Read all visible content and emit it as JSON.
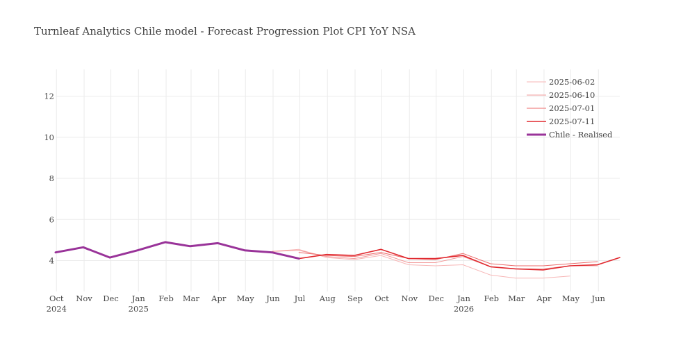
{
  "chart_data": {
    "type": "line",
    "title": "Turnleaf Analytics Chile model - Forecast Progression Plot CPI YoY NSA",
    "xlabel": "",
    "ylabel": "",
    "x_range": [
      "2024-09-30",
      "2026-06-25"
    ],
    "ylim": [
      2.5,
      13.3
    ],
    "y_ticks": [
      4,
      6,
      8,
      10,
      12
    ],
    "grid": true,
    "legend_position": "top-right",
    "x_ticks": [
      {
        "date": "2024-10-01",
        "label": "Oct",
        "sub": "2024"
      },
      {
        "date": "2024-11-01",
        "label": "Nov",
        "sub": ""
      },
      {
        "date": "2024-12-01",
        "label": "Dec",
        "sub": ""
      },
      {
        "date": "2025-01-01",
        "label": "Jan",
        "sub": "2025"
      },
      {
        "date": "2025-02-01",
        "label": "Feb",
        "sub": ""
      },
      {
        "date": "2025-03-01",
        "label": "Mar",
        "sub": ""
      },
      {
        "date": "2025-04-01",
        "label": "Apr",
        "sub": ""
      },
      {
        "date": "2025-05-01",
        "label": "May",
        "sub": ""
      },
      {
        "date": "2025-06-01",
        "label": "Jun",
        "sub": ""
      },
      {
        "date": "2025-07-01",
        "label": "Jul",
        "sub": ""
      },
      {
        "date": "2025-08-01",
        "label": "Aug",
        "sub": ""
      },
      {
        "date": "2025-09-01",
        "label": "Sep",
        "sub": ""
      },
      {
        "date": "2025-10-01",
        "label": "Oct",
        "sub": ""
      },
      {
        "date": "2025-11-01",
        "label": "Nov",
        "sub": ""
      },
      {
        "date": "2025-12-01",
        "label": "Dec",
        "sub": ""
      },
      {
        "date": "2026-01-01",
        "label": "Jan",
        "sub": "2026"
      },
      {
        "date": "2026-02-01",
        "label": "Feb",
        "sub": ""
      },
      {
        "date": "2026-03-01",
        "label": "Mar",
        "sub": ""
      },
      {
        "date": "2026-04-01",
        "label": "Apr",
        "sub": ""
      },
      {
        "date": "2026-05-01",
        "label": "May",
        "sub": ""
      },
      {
        "date": "2026-06-01",
        "label": "Jun",
        "sub": ""
      }
    ],
    "series": [
      {
        "name": "2025-06-02",
        "color": "#f7b6b6",
        "width": 1,
        "points": [
          [
            "2025-05-31",
            4.45
          ],
          [
            "2025-06-30",
            4.55
          ],
          [
            "2025-07-31",
            4.15
          ],
          [
            "2025-08-31",
            4.05
          ],
          [
            "2025-09-30",
            4.25
          ],
          [
            "2025-10-31",
            3.8
          ],
          [
            "2025-11-30",
            3.75
          ],
          [
            "2025-12-31",
            3.8
          ],
          [
            "2026-01-31",
            3.3
          ],
          [
            "2026-02-28",
            3.15
          ],
          [
            "2026-03-31",
            3.15
          ],
          [
            "2026-04-30",
            3.25
          ]
        ]
      },
      {
        "name": "2025-06-10",
        "color": "#f29a9a",
        "width": 1,
        "points": [
          [
            "2025-05-31",
            4.45
          ],
          [
            "2025-06-30",
            4.5
          ],
          [
            "2025-07-31",
            4.2
          ],
          [
            "2025-08-31",
            4.1
          ],
          [
            "2025-09-30",
            4.35
          ],
          [
            "2025-10-31",
            3.9
          ],
          [
            "2025-11-30",
            3.9
          ],
          [
            "2025-12-31",
            4.2
          ],
          [
            "2026-01-31",
            3.7
          ],
          [
            "2026-02-28",
            3.6
          ],
          [
            "2026-03-31",
            3.6
          ],
          [
            "2026-04-30",
            3.75
          ],
          [
            "2026-05-31",
            3.75
          ]
        ]
      },
      {
        "name": "2025-07-01",
        "color": "#ec6a6a",
        "width": 1,
        "points": [
          [
            "2025-06-30",
            4.4
          ],
          [
            "2025-07-31",
            4.25
          ],
          [
            "2025-08-31",
            4.2
          ],
          [
            "2025-09-30",
            4.4
          ],
          [
            "2025-10-31",
            4.1
          ],
          [
            "2025-11-30",
            4.05
          ],
          [
            "2025-12-31",
            4.35
          ],
          [
            "2026-01-31",
            3.85
          ],
          [
            "2026-02-28",
            3.75
          ],
          [
            "2026-03-31",
            3.75
          ],
          [
            "2026-04-30",
            3.85
          ],
          [
            "2026-05-31",
            3.95
          ]
        ]
      },
      {
        "name": "2025-07-11",
        "color": "#e0282e",
        "width": 1.6,
        "points": [
          [
            "2025-06-30",
            4.1
          ],
          [
            "2025-07-31",
            4.3
          ],
          [
            "2025-08-31",
            4.25
          ],
          [
            "2025-09-30",
            4.55
          ],
          [
            "2025-10-31",
            4.1
          ],
          [
            "2025-11-30",
            4.1
          ],
          [
            "2025-12-31",
            4.25
          ],
          [
            "2026-01-31",
            3.7
          ],
          [
            "2026-02-28",
            3.6
          ],
          [
            "2026-03-31",
            3.55
          ],
          [
            "2026-04-30",
            3.75
          ],
          [
            "2026-05-31",
            3.8
          ],
          [
            "2026-06-25",
            4.15
          ]
        ]
      },
      {
        "name": "Chile - Realised",
        "color": "#993399",
        "width": 3,
        "points": [
          [
            "2024-09-30",
            4.4
          ],
          [
            "2024-10-31",
            4.65
          ],
          [
            "2024-11-30",
            4.15
          ],
          [
            "2024-12-31",
            4.5
          ],
          [
            "2025-01-31",
            4.9
          ],
          [
            "2025-02-28",
            4.7
          ],
          [
            "2025-03-31",
            4.85
          ],
          [
            "2025-04-30",
            4.5
          ],
          [
            "2025-05-31",
            4.4
          ],
          [
            "2025-06-30",
            4.1
          ]
        ]
      }
    ]
  }
}
